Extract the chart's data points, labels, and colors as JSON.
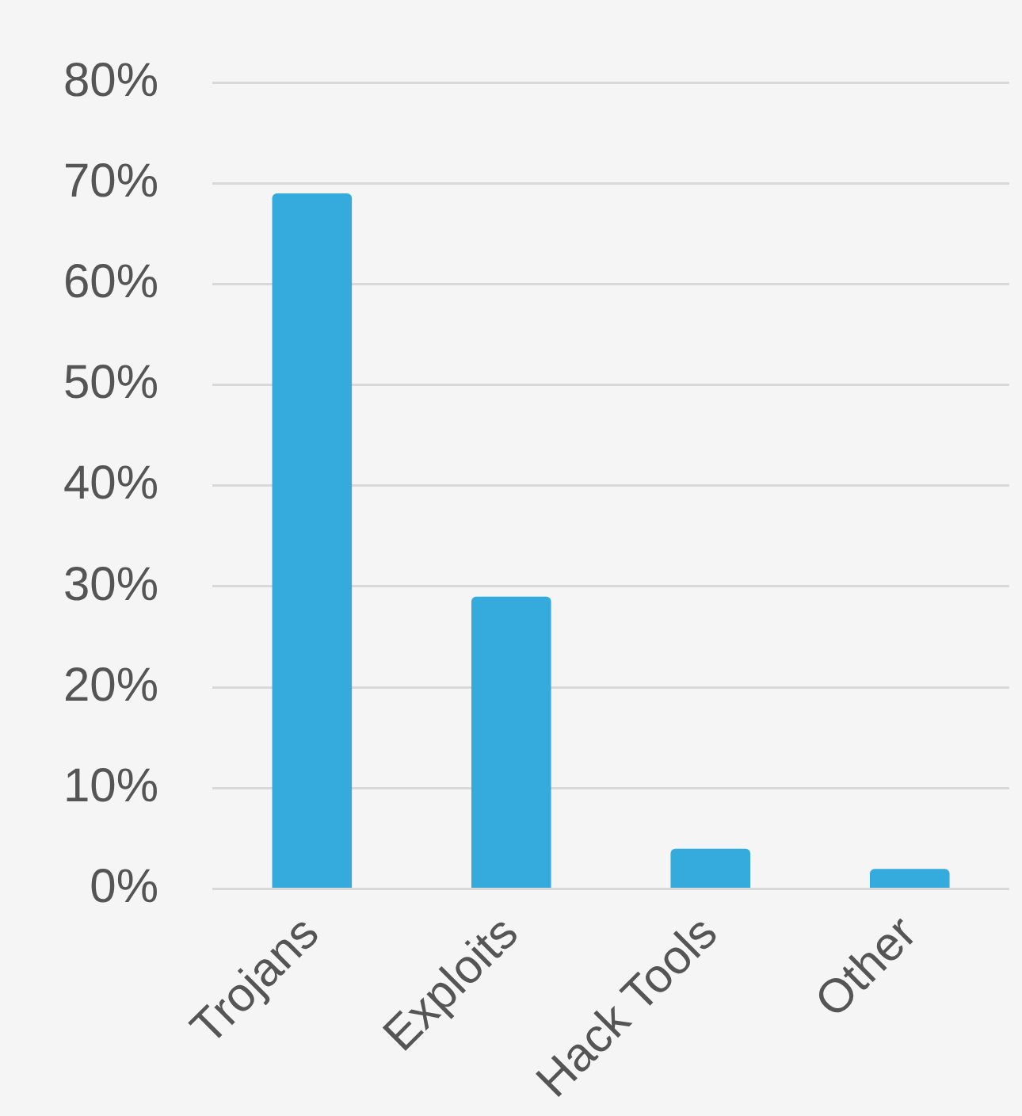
{
  "chart_data": {
    "type": "bar",
    "categories": [
      "Trojans",
      "Exploits",
      "Hack Tools",
      "Other"
    ],
    "values": [
      69,
      29,
      4,
      2
    ],
    "color": "#35aadd",
    "ylim": [
      0,
      80
    ],
    "yticks": [
      {
        "value": 0,
        "label": "0%"
      },
      {
        "value": 10,
        "label": "10%"
      },
      {
        "value": 20,
        "label": "20%"
      },
      {
        "value": 30,
        "label": "30%"
      },
      {
        "value": 40,
        "label": "40%"
      },
      {
        "value": 50,
        "label": "50%"
      },
      {
        "value": 60,
        "label": "60%"
      },
      {
        "value": 70,
        "label": "70%"
      },
      {
        "value": 80,
        "label": "80%"
      }
    ],
    "grid": "y",
    "legend": false
  }
}
